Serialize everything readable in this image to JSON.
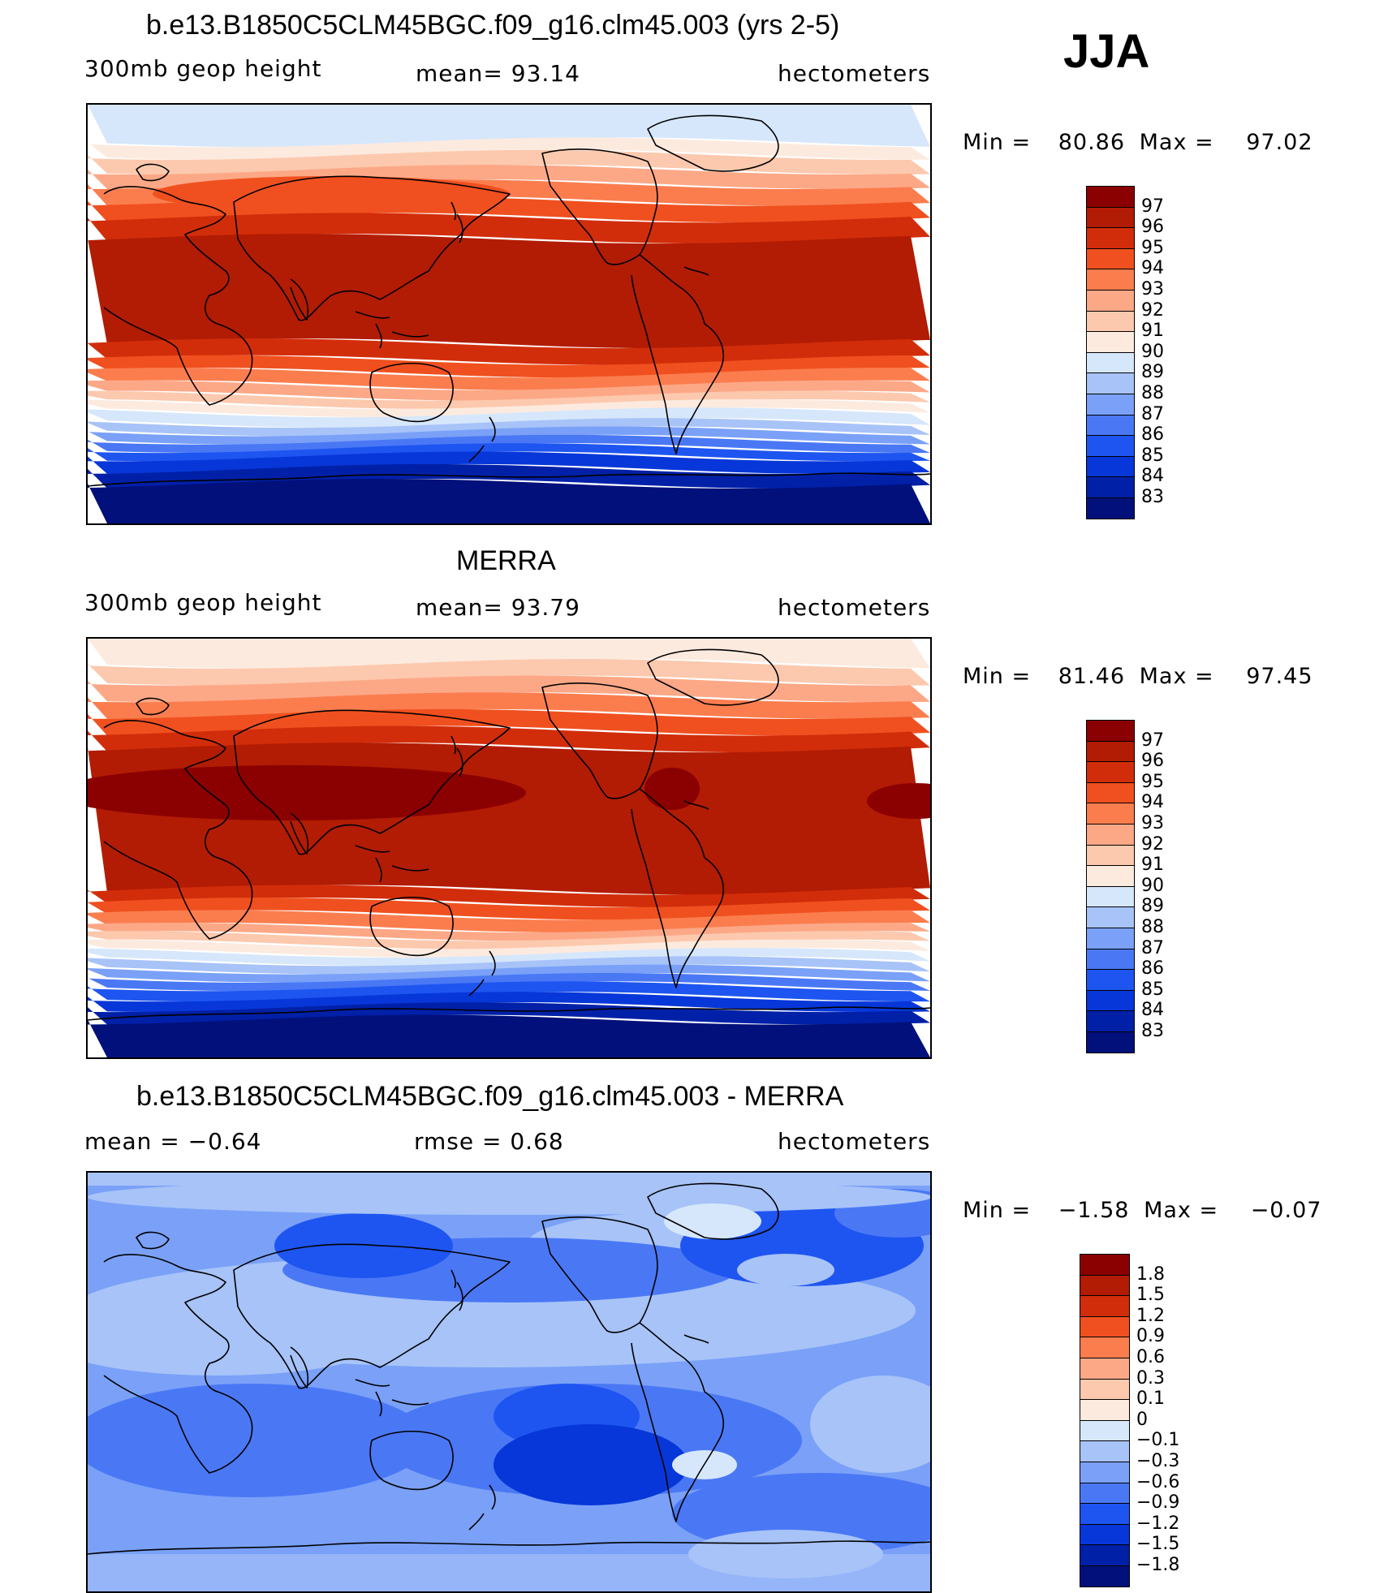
{
  "season": "JJA",
  "colors": {
    "absolute": [
      "#01107a",
      "#0020a8",
      "#0737d8",
      "#1e55f0",
      "#4a78f5",
      "#7aa1f7",
      "#a7c3f8",
      "#d6e7fb",
      "#fdeadf",
      "#fcc9ae",
      "#fca887",
      "#fb7d4e",
      "#f0501f",
      "#d22d0a",
      "#b21c04",
      "#8b0000"
    ],
    "difference": [
      "#01107a",
      "#0020a8",
      "#0737d8",
      "#1e55f0",
      "#4a78f5",
      "#7aa1f7",
      "#a7c3f8",
      "#d6e7fb",
      "#fdeadf",
      "#fcc9ae",
      "#fca887",
      "#fb7d4e",
      "#f0501f",
      "#d22d0a",
      "#b21c04",
      "#8b0000"
    ]
  },
  "panels": [
    {
      "title": "b.e13.B1850C5CLM45BGC.f09_g16.clm45.003 (yrs 2-5)",
      "left_label": "300mb  geop  height",
      "center_label": "mean=   93.14",
      "right_label": "hectometers",
      "min_label": "Min  =",
      "min_value": "80.86",
      "max_label": "Max  =",
      "max_value": "97.02",
      "levels": [
        "97",
        "96",
        "95",
        "94",
        "93",
        "92",
        "91",
        "90",
        "89",
        "88",
        "87",
        "86",
        "85",
        "84",
        "83"
      ]
    },
    {
      "title": "MERRA",
      "left_label": "300mb  geop  height",
      "center_label": "mean=   93.79",
      "right_label": "hectometers",
      "min_label": "Min  =",
      "min_value": "81.46",
      "max_label": "Max  =",
      "max_value": "97.45",
      "levels": [
        "97",
        "96",
        "95",
        "94",
        "93",
        "92",
        "91",
        "90",
        "89",
        "88",
        "87",
        "86",
        "85",
        "84",
        "83"
      ]
    },
    {
      "title": "b.e13.B1850C5CLM45BGC.f09_g16.clm45.003 - MERRA",
      "left_label": "mean  =    −0.64",
      "center_label": "rmse  =     0.68",
      "right_label": "hectometers",
      "min_label": "Min  =",
      "min_value": "−1.58",
      "max_label": "Max  =",
      "max_value": "−0.07",
      "levels": [
        "1.8",
        "1.5",
        "1.2",
        "0.9",
        "0.6",
        "0.3",
        "0.1",
        "0",
        "−0.1",
        "−0.3",
        "−0.6",
        "−0.9",
        "−1.2",
        "−1.5",
        "−1.8"
      ]
    }
  ]
}
